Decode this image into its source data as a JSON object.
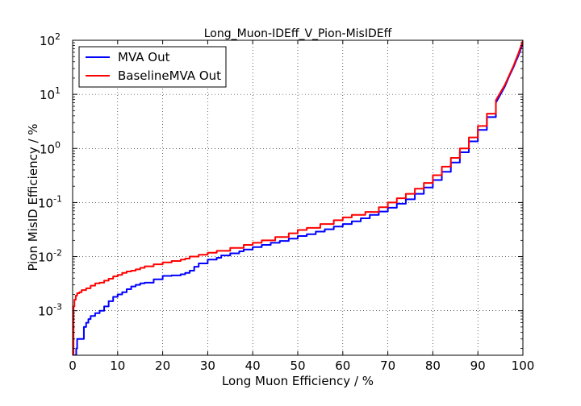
{
  "chart_data": {
    "type": "line",
    "title": "Long_Muon-IDEff_V_Pion-MisIDEff",
    "xlabel": "Long Muon Efficiency / %",
    "ylabel": "Pion MisID Efficiency / %",
    "xlim": [
      0,
      100
    ],
    "ylim": [
      0.00015,
      100
    ],
    "yscale": "log",
    "grid": true,
    "legend_position": "top-left",
    "x_ticks": [
      "0",
      "10",
      "20",
      "30",
      "40",
      "50",
      "60",
      "70",
      "80",
      "90",
      "100"
    ],
    "y_ticks": [
      {
        "base": "10",
        "exp": "-3",
        "value": 0.001
      },
      {
        "base": "10",
        "exp": "-2",
        "value": 0.01
      },
      {
        "base": "10",
        "exp": "-1",
        "value": 0.1
      },
      {
        "base": "10",
        "exp": "0",
        "value": 1
      },
      {
        "base": "10",
        "exp": "1",
        "value": 10
      },
      {
        "base": "10",
        "exp": "2",
        "value": 100
      }
    ],
    "series": [
      {
        "name": "MVA Out",
        "color": "#0000ff",
        "step": true,
        "x": [
          0.5,
          0.8,
          1.0,
          1.5,
          2.5,
          3.0,
          3.5,
          4.0,
          5.0,
          6.0,
          7.0,
          8.0,
          9.0,
          10.0,
          11.0,
          12.0,
          13.0,
          14.0,
          15.0,
          16.0,
          18.0,
          20.0,
          22.0,
          24.0,
          25.0,
          26.0,
          27.0,
          28.0,
          30.0,
          32.0,
          33.0,
          35.0,
          37.0,
          38.0,
          40.0,
          42.0,
          44.0,
          46.0,
          48.0,
          50.0,
          52.0,
          54.0,
          56.0,
          58.0,
          60.0,
          62.0,
          64.0,
          66.0,
          68.0,
          70.0,
          72.0,
          74.0,
          76.0,
          78.0,
          80.0,
          82.0,
          84.0,
          86.0,
          88.0,
          90.0,
          92.0,
          94.0,
          96.0,
          97.0,
          98.0,
          98.5,
          99.0,
          99.5,
          100.0
        ],
        "y": [
          0.00015,
          0.0002,
          0.0003,
          0.0003,
          0.0005,
          0.0006,
          0.0007,
          0.0008,
          0.0009,
          0.001,
          0.0012,
          0.0015,
          0.0018,
          0.002,
          0.0022,
          0.0025,
          0.0028,
          0.003,
          0.0032,
          0.0033,
          0.0038,
          0.0044,
          0.0045,
          0.0047,
          0.005,
          0.0055,
          0.0065,
          0.0075,
          0.0088,
          0.0095,
          0.0105,
          0.0115,
          0.0125,
          0.0135,
          0.015,
          0.0165,
          0.018,
          0.0195,
          0.0215,
          0.024,
          0.026,
          0.029,
          0.032,
          0.036,
          0.04,
          0.045,
          0.051,
          0.059,
          0.068,
          0.08,
          0.095,
          0.115,
          0.145,
          0.19,
          0.26,
          0.37,
          0.55,
          0.85,
          1.35,
          2.2,
          3.8,
          7.0,
          14.0,
          22.0,
          33.0,
          42.0,
          52.0,
          68.0,
          90.0
        ]
      },
      {
        "name": "BaselineMVA Out",
        "color": "#ff0000",
        "step": true,
        "x": [
          0.2,
          0.4,
          0.7,
          1.0,
          1.5,
          2.0,
          3.0,
          4.0,
          5.0,
          6.0,
          7.0,
          8.0,
          9.0,
          10.0,
          11.0,
          12.0,
          13.0,
          14.0,
          15.0,
          16.0,
          18.0,
          20.0,
          22.0,
          24.0,
          25.0,
          26.0,
          28.0,
          30.0,
          32.0,
          35.0,
          38.0,
          40.0,
          42.0,
          45.0,
          48.0,
          50.0,
          52.0,
          55.0,
          58.0,
          60.0,
          62.0,
          65.0,
          68.0,
          70.0,
          72.0,
          74.0,
          76.0,
          78.0,
          80.0,
          82.0,
          84.0,
          86.0,
          88.0,
          90.0,
          92.0,
          94.0,
          96.0,
          97.0,
          98.0,
          98.5,
          99.0,
          99.5,
          100.0
        ],
        "y": [
          0.0012,
          0.0016,
          0.0019,
          0.0021,
          0.0022,
          0.0024,
          0.0026,
          0.0029,
          0.0032,
          0.0033,
          0.0036,
          0.0039,
          0.0043,
          0.0046,
          0.005,
          0.0053,
          0.0055,
          0.0058,
          0.0062,
          0.0066,
          0.0072,
          0.0078,
          0.0083,
          0.0088,
          0.0092,
          0.01,
          0.0108,
          0.0118,
          0.0128,
          0.0145,
          0.0165,
          0.018,
          0.02,
          0.023,
          0.027,
          0.031,
          0.034,
          0.04,
          0.047,
          0.053,
          0.059,
          0.067,
          0.082,
          0.1,
          0.12,
          0.145,
          0.18,
          0.23,
          0.32,
          0.46,
          0.67,
          1.0,
          1.6,
          2.6,
          4.4,
          7.8,
          15.0,
          23.0,
          35.0,
          45.0,
          57.0,
          75.0,
          98.0
        ]
      }
    ]
  }
}
